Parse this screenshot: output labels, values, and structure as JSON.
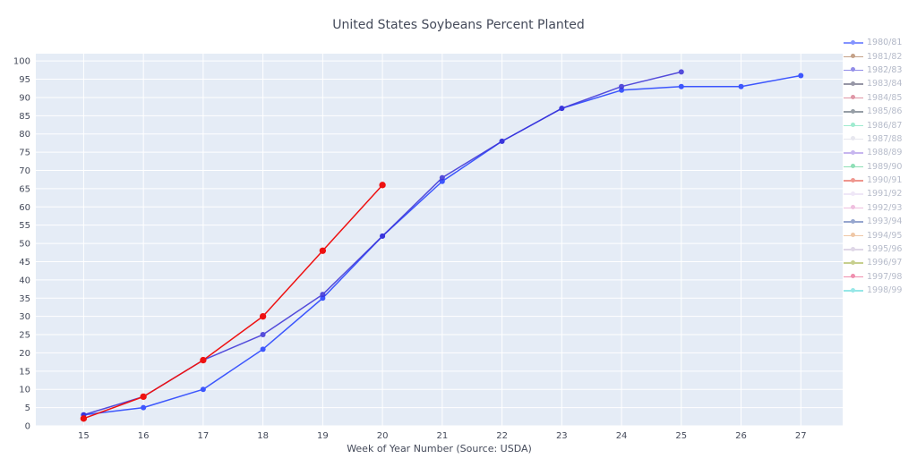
{
  "chart_data": {
    "type": "line",
    "title": "United States Soybeans Percent Planted",
    "xlabel": "Week of Year Number     (Source: USDA)",
    "ylabel": "",
    "xlim": [
      14.2,
      27.7
    ],
    "ylim": [
      0,
      102
    ],
    "xticks": [
      15,
      16,
      17,
      18,
      19,
      20,
      21,
      22,
      23,
      24,
      25,
      26,
      27
    ],
    "yticks": [
      0,
      5,
      10,
      15,
      20,
      25,
      30,
      35,
      40,
      45,
      50,
      55,
      60,
      65,
      70,
      75,
      80,
      85,
      90,
      95,
      100
    ],
    "grid": true,
    "plot_bgcolor": "#e5ecf6",
    "legend_position": "right",
    "series": [
      {
        "name": "1980/81",
        "color": "#1f3cff",
        "x": [
          15,
          16,
          17,
          18,
          19,
          20,
          21,
          22,
          23,
          24,
          25,
          26,
          27
        ],
        "y": [
          3,
          5,
          10,
          21,
          35,
          52,
          67,
          78,
          87,
          92,
          93,
          93,
          96
        ],
        "width": 1.5,
        "marker": 3,
        "opacity": 0.85,
        "legend_opacity": 0.55
      },
      {
        "name": "1981/82",
        "color": "#8b4513",
        "x": [],
        "y": [],
        "width": 1.5,
        "marker": 3,
        "opacity": 1,
        "legend_opacity": 0.5
      },
      {
        "name": "1982/83",
        "color": "#3a30d6",
        "x": [
          15,
          16,
          17,
          18,
          19,
          20,
          21,
          22,
          23,
          24,
          25
        ],
        "y": [
          3,
          8,
          18,
          25,
          36,
          52,
          68,
          78,
          87,
          93,
          97
        ],
        "width": 1.5,
        "marker": 3,
        "opacity": 0.85,
        "legend_opacity": 0.55
      },
      {
        "name": "1983/84",
        "color": "#303050",
        "x": [],
        "y": [],
        "width": 1.5,
        "marker": 3,
        "opacity": 1,
        "legend_opacity": 0.5
      },
      {
        "name": "1984/85",
        "color": "#c03050",
        "x": [],
        "y": [],
        "width": 1.5,
        "marker": 3,
        "opacity": 1,
        "legend_opacity": 0.5
      },
      {
        "name": "1985/86",
        "color": "#304050",
        "x": [],
        "y": [],
        "width": 1.5,
        "marker": 3,
        "opacity": 1,
        "legend_opacity": 0.5
      },
      {
        "name": "1986/87",
        "color": "#40d8a0",
        "x": [],
        "y": [],
        "width": 1.5,
        "marker": 3,
        "opacity": 1,
        "legend_opacity": 0.5
      },
      {
        "name": "1987/88",
        "color": "#d0d0e0",
        "x": [],
        "y": [],
        "width": 1.5,
        "marker": 3,
        "opacity": 1,
        "legend_opacity": 0.5
      },
      {
        "name": "1988/89",
        "color": "#9070e0",
        "x": [],
        "y": [],
        "width": 1.5,
        "marker": 3,
        "opacity": 1,
        "legend_opacity": 0.5
      },
      {
        "name": "1989/90",
        "color": "#20c070",
        "x": [],
        "y": [],
        "width": 1.5,
        "marker": 3,
        "opacity": 1,
        "legend_opacity": 0.5
      },
      {
        "name": "1990/91",
        "color": "#e03020",
        "x": [],
        "y": [],
        "width": 1.5,
        "marker": 3,
        "opacity": 1,
        "legend_opacity": 0.5
      },
      {
        "name": "1991/92",
        "color": "#e0d0f0",
        "x": [],
        "y": [],
        "width": 1.5,
        "marker": 3,
        "opacity": 1,
        "legend_opacity": 0.5
      },
      {
        "name": "1992/93",
        "color": "#e080c0",
        "x": [],
        "y": [],
        "width": 1.5,
        "marker": 3,
        "opacity": 1,
        "legend_opacity": 0.5
      },
      {
        "name": "1993/94",
        "color": "#3050a0",
        "x": [],
        "y": [],
        "width": 1.5,
        "marker": 3,
        "opacity": 1,
        "legend_opacity": 0.5
      },
      {
        "name": "1994/95",
        "color": "#e09050",
        "x": [],
        "y": [],
        "width": 1.5,
        "marker": 3,
        "opacity": 1,
        "legend_opacity": 0.5
      },
      {
        "name": "1995/96",
        "color": "#c0b0d0",
        "x": [],
        "y": [],
        "width": 1.5,
        "marker": 3,
        "opacity": 1,
        "legend_opacity": 0.5
      },
      {
        "name": "1996/97",
        "color": "#90a020",
        "x": [],
        "y": [],
        "width": 1.5,
        "marker": 3,
        "opacity": 1,
        "legend_opacity": 0.5
      },
      {
        "name": "1997/98",
        "color": "#e02060",
        "x": [],
        "y": [],
        "width": 1.5,
        "marker": 3,
        "opacity": 1,
        "legend_opacity": 0.5
      },
      {
        "name": "1998/99",
        "color": "#30d0d0",
        "x": [
          15,
          16,
          17,
          18,
          19,
          20
        ],
        "y": [
          2,
          8,
          18,
          30,
          48,
          66
        ],
        "width": 1.5,
        "marker": 4,
        "opacity": 1,
        "legend_opacity": 0.5,
        "draw_color": "#ee1111"
      }
    ]
  }
}
